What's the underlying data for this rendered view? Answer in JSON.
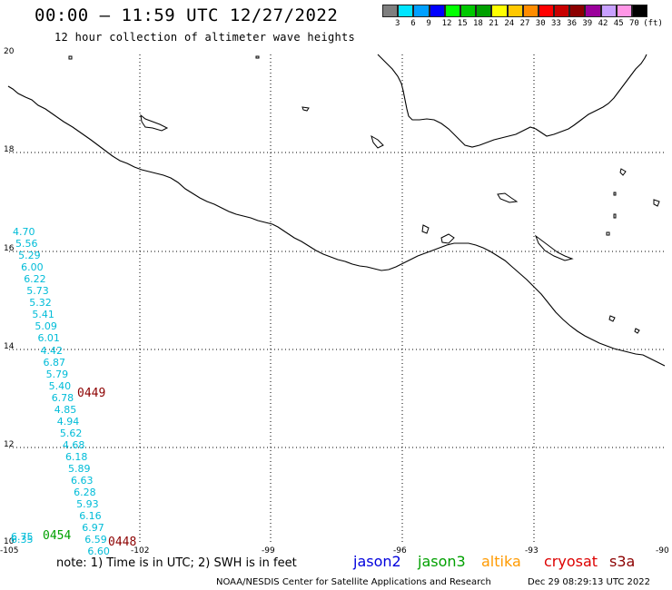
{
  "header": {
    "title": "00:00 – 11:59 UTC 12/27/2022",
    "subtitle": "12 hour collection of altimeter wave heights"
  },
  "colorbar": {
    "colors": [
      "#7f7f7f",
      "#00e5ff",
      "#00a0ff",
      "#0000ff",
      "#00ff00",
      "#00c800",
      "#00a000",
      "#ffff00",
      "#ffc800",
      "#ff8c00",
      "#ff0000",
      "#c80000",
      "#8c0000",
      "#9b009b",
      "#c8a0ff",
      "#ff96e6",
      "#000000"
    ],
    "labels": [
      "3",
      "6",
      "9",
      "12",
      "15",
      "18",
      "21",
      "24",
      "27",
      "30",
      "33",
      "36",
      "39",
      "42",
      "45",
      "70",
      "(ft)"
    ]
  },
  "map": {
    "lat_labels": [
      "20",
      "18",
      "16",
      "14",
      "12",
      "10"
    ],
    "lon_labels": [
      "-105",
      "-102",
      "-99",
      "-96",
      "-93",
      "-90"
    ],
    "track": [
      {
        "value": "4.70",
        "row": 0
      },
      {
        "value": "5.56",
        "row": 1
      },
      {
        "value": "5.29",
        "row": 2
      },
      {
        "value": "6.00",
        "row": 3
      },
      {
        "value": "6.22",
        "row": 4
      },
      {
        "value": "5.73",
        "row": 5
      },
      {
        "value": "5.32",
        "row": 6
      },
      {
        "value": "5.41",
        "row": 7
      },
      {
        "value": "5.09",
        "row": 8
      },
      {
        "value": "6.01",
        "row": 9
      },
      {
        "value": "4.42",
        "row": 10
      },
      {
        "value": "6.87",
        "row": 11
      },
      {
        "value": "5.79",
        "row": 12
      },
      {
        "value": "5.40",
        "row": 13
      },
      {
        "value": "6.78",
        "row": 14
      },
      {
        "value": "4.85",
        "row": 15
      },
      {
        "value": "4.94",
        "row": 16
      },
      {
        "value": "5.62",
        "row": 17
      },
      {
        "value": "4.68",
        "row": 18
      },
      {
        "value": "6.18",
        "row": 19
      },
      {
        "value": "5.89",
        "row": 20
      },
      {
        "value": "6.63",
        "row": 21
      },
      {
        "value": "6.28",
        "row": 22
      },
      {
        "value": "5.93",
        "row": 23
      },
      {
        "value": "6.16",
        "row": 24
      },
      {
        "value": "6.97",
        "row": 25
      },
      {
        "value": "6.59",
        "row": 26
      },
      {
        "value": "6.60",
        "row": 27
      }
    ],
    "extra_values": [
      "6.75",
      "6.35"
    ],
    "pass_labels": [
      {
        "text": "0449",
        "color": "#8c0000"
      },
      {
        "text": "0454",
        "color": "#00a000"
      },
      {
        "text": "0448",
        "color": "#8c0000"
      }
    ]
  },
  "note": "note:  1) Time is in UTC;  2) SWH is in feet",
  "satellites": [
    {
      "name": "jason2",
      "color": "#0000dd"
    },
    {
      "name": "jason3",
      "color": "#00a000"
    },
    {
      "name": "altika",
      "color": "#ff9a00"
    },
    {
      "name": "cryosat",
      "color": "#dd0000"
    },
    {
      "name": "s3a",
      "color": "#8c0000"
    }
  ],
  "footer": {
    "credit": "NOAA/NESDIS Center for Satellite Applications and Research",
    "generated": "Dec 29 08:29:13 UTC 2022"
  }
}
